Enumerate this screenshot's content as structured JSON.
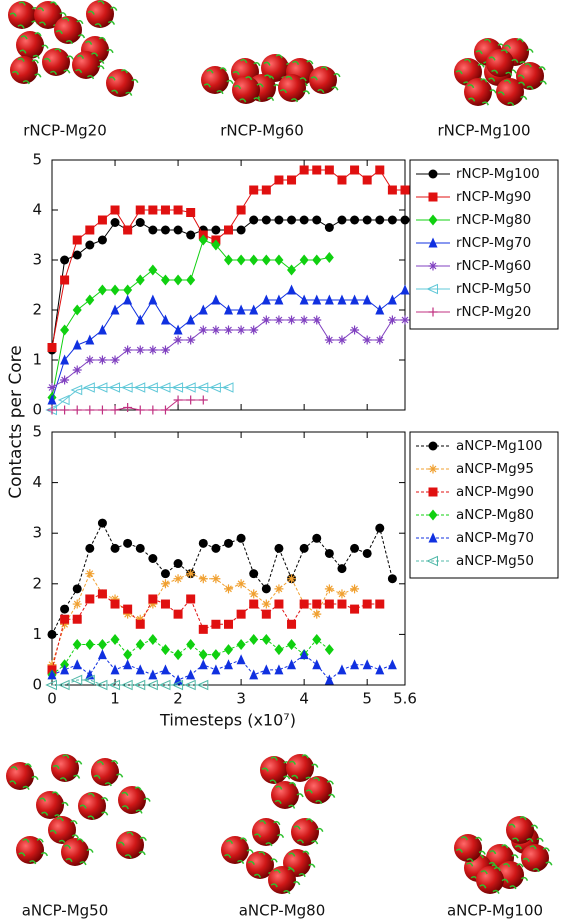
{
  "chart_data": [
    {
      "type": "line",
      "ylabel": "Contacts per Core",
      "ylim": [
        0,
        5
      ],
      "yticks": [
        0,
        1,
        2,
        3,
        4,
        5
      ],
      "xlim": [
        0,
        5.6
      ],
      "dashed": false,
      "legend": "right",
      "x": [
        0,
        0.2,
        0.4,
        0.6,
        0.8,
        1.0,
        1.2,
        1.4,
        1.6,
        1.8,
        2.0,
        2.2,
        2.4,
        2.6,
        2.8,
        3.0,
        3.2,
        3.4,
        3.6,
        3.8,
        4.0,
        4.2,
        4.4,
        4.6,
        4.8,
        5.0,
        5.2,
        5.4,
        5.6
      ],
      "series": [
        {
          "name": "rNCP-Mg100",
          "color": "#000000",
          "marker": "circle",
          "values": [
            1.2,
            3.0,
            3.1,
            3.3,
            3.4,
            3.75,
            3.6,
            3.75,
            3.6,
            3.6,
            3.6,
            3.5,
            3.6,
            3.6,
            3.6,
            3.6,
            3.8,
            3.8,
            3.8,
            3.8,
            3.8,
            3.8,
            3.65,
            3.8,
            3.8,
            3.8,
            3.8,
            3.8,
            3.8
          ]
        },
        {
          "name": "rNCP-Mg90",
          "color": "#e01010",
          "marker": "square",
          "values": [
            1.25,
            2.6,
            3.4,
            3.6,
            3.8,
            4.0,
            3.6,
            4.0,
            4.0,
            4.0,
            4.0,
            3.95,
            3.5,
            3.4,
            3.6,
            4.0,
            4.4,
            4.4,
            4.6,
            4.6,
            4.8,
            4.8,
            4.8,
            4.6,
            4.8,
            4.6,
            4.8,
            4.4,
            4.4
          ]
        },
        {
          "name": "rNCP-Mg80",
          "color": "#10d010",
          "marker": "diamond",
          "values": [
            0.25,
            1.6,
            2.0,
            2.2,
            2.4,
            2.4,
            2.4,
            2.6,
            2.8,
            2.6,
            2.6,
            2.6,
            3.4,
            3.3,
            3.0,
            3.0,
            3.0,
            3.0,
            3.0,
            2.8,
            3.0,
            3.0,
            3.05,
            null,
            null,
            null,
            null,
            null,
            null
          ]
        },
        {
          "name": "rNCP-Mg70",
          "color": "#1030e0",
          "marker": "triangle",
          "values": [
            0.2,
            1.0,
            1.3,
            1.4,
            1.6,
            2.0,
            2.2,
            1.8,
            2.2,
            1.8,
            1.6,
            1.8,
            2.0,
            2.2,
            2.0,
            2.0,
            2.0,
            2.2,
            2.2,
            2.4,
            2.2,
            2.2,
            2.2,
            2.2,
            2.2,
            2.2,
            2.0,
            2.2,
            2.4
          ]
        },
        {
          "name": "rNCP-Mg60",
          "color": "#8040c0",
          "marker": "star",
          "values": [
            0.45,
            0.6,
            0.8,
            1.0,
            1.0,
            1.0,
            1.2,
            1.2,
            1.2,
            1.2,
            1.4,
            1.4,
            1.6,
            1.6,
            1.6,
            1.6,
            1.6,
            1.8,
            1.8,
            1.8,
            1.8,
            1.8,
            1.4,
            1.4,
            1.6,
            1.4,
            1.4,
            1.8,
            1.8
          ]
        },
        {
          "name": "rNCP-Mg50",
          "color": "#60c8d8",
          "marker": "left-triangle",
          "values": [
            0,
            0.2,
            0.4,
            0.45,
            0.45,
            0.45,
            0.45,
            0.45,
            0.45,
            0.45,
            0.45,
            0.45,
            0.45,
            0.45,
            0.45,
            null,
            null,
            null,
            null,
            null,
            null,
            null,
            null,
            null,
            null,
            null,
            null,
            null,
            null
          ]
        },
        {
          "name": "rNCP-Mg20",
          "color": "#c03080",
          "marker": "plus",
          "values": [
            0,
            0,
            0,
            0,
            0,
            0,
            0.05,
            0,
            0,
            0,
            0.2,
            0.2,
            0.2,
            null,
            null,
            null,
            null,
            null,
            null,
            null,
            null,
            null,
            null,
            null,
            null,
            null,
            null,
            null,
            null
          ]
        }
      ]
    },
    {
      "type": "line",
      "xlabel": "Timesteps (x10⁷)",
      "ylim": [
        0,
        5
      ],
      "yticks": [
        0,
        1,
        2,
        3,
        4,
        5
      ],
      "xlim": [
        0,
        5.6
      ],
      "xticks": [
        0,
        1,
        2,
        3,
        4,
        5,
        5.6
      ],
      "dashed": true,
      "legend": "right",
      "x": [
        0,
        0.2,
        0.4,
        0.6,
        0.8,
        1.0,
        1.2,
        1.4,
        1.6,
        1.8,
        2.0,
        2.2,
        2.4,
        2.6,
        2.8,
        3.0,
        3.2,
        3.4,
        3.6,
        3.8,
        4.0,
        4.2,
        4.4,
        4.6,
        4.8,
        5.0,
        5.2,
        5.4,
        5.6
      ],
      "series": [
        {
          "name": "aNCP-Mg100",
          "color": "#000000",
          "marker": "circle",
          "values": [
            1.0,
            1.5,
            1.9,
            2.7,
            3.2,
            2.7,
            2.8,
            2.7,
            2.5,
            2.2,
            2.4,
            2.2,
            2.8,
            2.7,
            2.8,
            2.9,
            2.2,
            1.9,
            2.7,
            2.1,
            2.7,
            2.9,
            2.6,
            2.3,
            2.7,
            2.6,
            3.1,
            2.1,
            null
          ]
        },
        {
          "name": "aNCP-Mg95",
          "color": "#f0a030",
          "marker": "star",
          "values": [
            0.4,
            1.2,
            1.6,
            2.2,
            1.8,
            1.7,
            1.4,
            1.3,
            1.6,
            2.0,
            2.1,
            2.2,
            2.1,
            2.1,
            1.9,
            2.0,
            1.8,
            1.6,
            1.9,
            2.1,
            1.6,
            1.4,
            1.9,
            1.8,
            1.9,
            null,
            null,
            null,
            null
          ]
        },
        {
          "name": "aNCP-Mg90",
          "color": "#e01010",
          "marker": "square",
          "values": [
            0.3,
            1.3,
            1.3,
            1.7,
            1.8,
            1.6,
            1.5,
            1.2,
            1.7,
            1.6,
            1.4,
            1.7,
            1.1,
            1.2,
            1.2,
            1.4,
            1.6,
            1.4,
            1.6,
            1.2,
            1.6,
            1.6,
            1.6,
            1.6,
            1.5,
            1.6,
            1.6,
            null,
            null
          ]
        },
        {
          "name": "aNCP-Mg80",
          "color": "#10d010",
          "marker": "diamond",
          "values": [
            0.2,
            0.4,
            0.8,
            0.8,
            0.8,
            0.9,
            0.6,
            0.8,
            0.9,
            0.7,
            0.6,
            0.8,
            0.6,
            0.6,
            0.7,
            0.8,
            0.9,
            0.9,
            0.7,
            0.8,
            0.6,
            0.9,
            0.7,
            null,
            null,
            null,
            null,
            null,
            null
          ]
        },
        {
          "name": "aNCP-Mg70",
          "color": "#1030e0",
          "marker": "triangle",
          "values": [
            0.2,
            0.3,
            0.4,
            0.2,
            0.6,
            0.3,
            0.4,
            0.3,
            0.2,
            0.3,
            0.1,
            0.2,
            0.4,
            0.3,
            0.4,
            0.5,
            0.2,
            0.3,
            0.3,
            0.4,
            0.6,
            0.4,
            0.1,
            0.3,
            0.4,
            0.4,
            0.3,
            0.4,
            null
          ]
        },
        {
          "name": "aNCP-Mg50",
          "color": "#50b8a8",
          "marker": "left-triangle",
          "values": [
            0,
            0,
            0.1,
            0.1,
            0,
            0,
            0,
            0,
            0,
            0,
            0,
            0,
            0,
            null,
            null,
            null,
            null,
            null,
            null,
            null,
            null,
            null,
            null,
            null,
            null,
            null,
            null,
            null,
            null
          ]
        }
      ]
    }
  ],
  "images": {
    "top": [
      "rNCP-Mg20",
      "rNCP-Mg60",
      "rNCP-Mg100"
    ],
    "bottom": [
      "aNCP-Mg50",
      "aNCP-Mg80",
      "aNCP-Mg100"
    ]
  }
}
